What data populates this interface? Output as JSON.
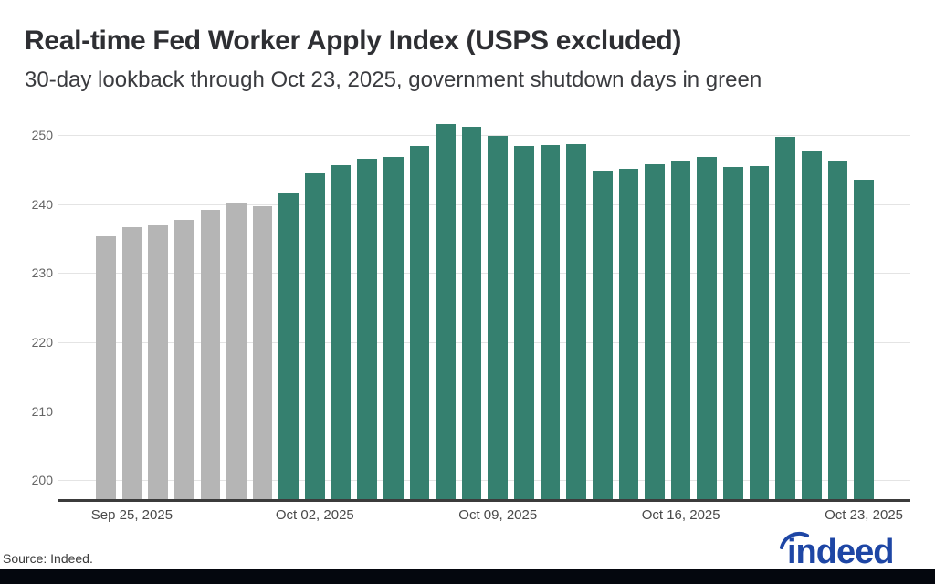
{
  "header": {
    "title": "Real-time Fed Worker Apply Index (USPS excluded)",
    "subtitle": "30-day lookback through Oct 23, 2025, government shutdown days in green"
  },
  "chart_data": {
    "type": "bar",
    "title": "Real-time Fed Worker Apply Index (USPS excluded)",
    "subtitle": "30-day lookback through Oct 23, 2025, government shutdown days in green",
    "x": [
      "Sep 24, 2025",
      "Sep 25, 2025",
      "Sep 26, 2025",
      "Sep 27, 2025",
      "Sep 28, 2025",
      "Sep 29, 2025",
      "Sep 30, 2025",
      "Oct 01, 2025",
      "Oct 02, 2025",
      "Oct 03, 2025",
      "Oct 04, 2025",
      "Oct 05, 2025",
      "Oct 06, 2025",
      "Oct 07, 2025",
      "Oct 08, 2025",
      "Oct 09, 2025",
      "Oct 10, 2025",
      "Oct 11, 2025",
      "Oct 12, 2025",
      "Oct 13, 2025",
      "Oct 14, 2025",
      "Oct 15, 2025",
      "Oct 16, 2025",
      "Oct 17, 2025",
      "Oct 18, 2025",
      "Oct 19, 2025",
      "Oct 20, 2025",
      "Oct 21, 2025",
      "Oct 22, 2025",
      "Oct 23, 2025"
    ],
    "values": [
      235.4,
      236.7,
      236.9,
      237.8,
      239.2,
      240.2,
      239.7,
      241.7,
      244.5,
      245.7,
      246.6,
      246.9,
      248.5,
      251.6,
      251.2,
      249.9,
      248.5,
      248.6,
      248.7,
      244.9,
      245.2,
      245.8,
      246.4,
      246.8,
      245.4,
      245.5,
      249.8,
      247.7,
      246.3,
      243.5
    ],
    "shutdown_start_index": 7,
    "bar_colors": {
      "pre_shutdown": "#b5b5b5",
      "shutdown": "#35806f"
    },
    "yticks": [
      200,
      210,
      220,
      230,
      240,
      250
    ],
    "ylim": [
      197,
      252.7
    ],
    "xticks": [
      {
        "index": 1,
        "label": "Sep 25, 2025"
      },
      {
        "index": 8,
        "label": "Oct 02, 2025"
      },
      {
        "index": 15,
        "label": "Oct 09, 2025"
      },
      {
        "index": 22,
        "label": "Oct 16, 2025"
      },
      {
        "index": 29,
        "label": "Oct 23, 2025"
      }
    ],
    "grid": true,
    "legend": "none"
  },
  "footer": {
    "source": "Source: Indeed.",
    "logo_text": "indeed",
    "logo_color": "#1e46a5",
    "bar_color": "#04070e"
  }
}
